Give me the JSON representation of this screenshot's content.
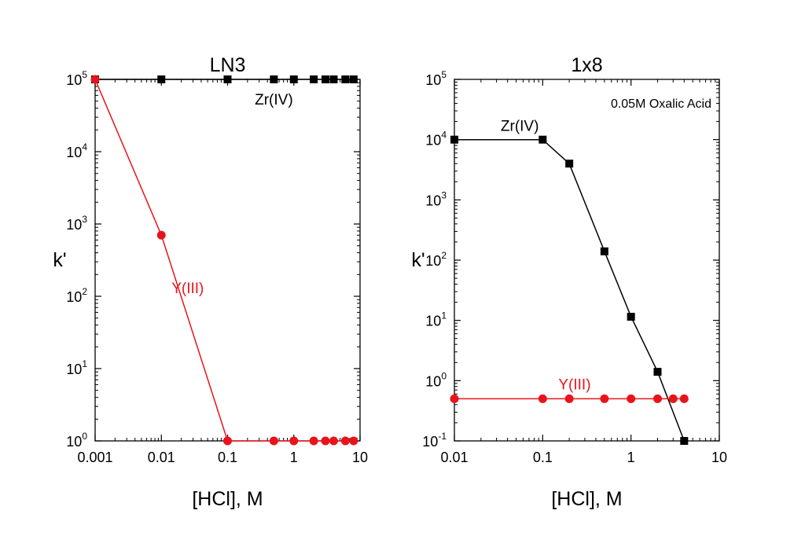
{
  "chart_data": [
    {
      "type": "line",
      "title": "LN3",
      "xlabel": "[HCl], M",
      "ylabel": "k'",
      "xscale": "log",
      "yscale": "log",
      "xlim": [
        0.001,
        10
      ],
      "ylim": [
        1,
        100000
      ],
      "xticks": [
        {
          "value": 0.001,
          "label": "0.001"
        },
        {
          "value": 0.01,
          "label": "0.01"
        },
        {
          "value": 0.1,
          "label": "0.1"
        },
        {
          "value": 1,
          "label": "1"
        },
        {
          "value": 10,
          "label": "10"
        }
      ],
      "yticks": [
        {
          "value": 1,
          "base": "10",
          "exp": "0"
        },
        {
          "value": 10,
          "base": "10",
          "exp": "1"
        },
        {
          "value": 100,
          "base": "10",
          "exp": "2"
        },
        {
          "value": 1000,
          "base": "10",
          "exp": "3"
        },
        {
          "value": 10000,
          "base": "10",
          "exp": "4"
        },
        {
          "value": 100000,
          "base": "10",
          "exp": "5"
        }
      ],
      "grid": false,
      "annotations": [],
      "series": [
        {
          "name": "Zr(IV)",
          "color": "#000000",
          "marker": "square",
          "label_anchor": {
            "x": 0.5,
            "y": 45000
          },
          "x": [
            0.001,
            0.01,
            0.1,
            0.5,
            1,
            2,
            3,
            4,
            6,
            8
          ],
          "y": [
            100000,
            100000,
            100000,
            100000,
            100000,
            100000,
            100000,
            100000,
            100000,
            100000
          ]
        },
        {
          "name": "Y(III)",
          "color": "#e8141b",
          "marker": "circle",
          "label_anchor": {
            "x": 0.025,
            "y": 110
          },
          "x": [
            0.001,
            0.01,
            0.1,
            0.5,
            1,
            2,
            3,
            4,
            6,
            8
          ],
          "y": [
            100000,
            700,
            1,
            1,
            1,
            1,
            1,
            1,
            1,
            1
          ]
        }
      ]
    },
    {
      "type": "line",
      "title": "1x8",
      "xlabel": "[HCl], M",
      "ylabel": "k'",
      "xscale": "log",
      "yscale": "log",
      "xlim": [
        0.01,
        10
      ],
      "ylim": [
        0.1,
        100000
      ],
      "xticks": [
        {
          "value": 0.01,
          "label": "0.01"
        },
        {
          "value": 0.1,
          "label": "0.1"
        },
        {
          "value": 1,
          "label": "1"
        },
        {
          "value": 10,
          "label": "10"
        }
      ],
      "yticks": [
        {
          "value": 0.1,
          "base": "10",
          "exp": "-1"
        },
        {
          "value": 1,
          "base": "10",
          "exp": "0"
        },
        {
          "value": 10,
          "base": "10",
          "exp": "1"
        },
        {
          "value": 100,
          "base": "10",
          "exp": "2"
        },
        {
          "value": 1000,
          "base": "10",
          "exp": "3"
        },
        {
          "value": 10000,
          "base": "10",
          "exp": "4"
        },
        {
          "value": 100000,
          "base": "10",
          "exp": "5"
        }
      ],
      "grid": false,
      "annotations": [
        {
          "text": "0.05M Oxalic Acid",
          "placement": "top-right"
        }
      ],
      "series": [
        {
          "name": "Zr(IV)",
          "color": "#000000",
          "marker": "square",
          "label_anchor": {
            "x": 0.055,
            "y": 14000
          },
          "x": [
            0.01,
            0.1,
            0.2,
            0.5,
            1,
            2,
            4
          ],
          "y": [
            10000,
            10000,
            4000,
            140,
            11.5,
            1.4,
            0.1
          ]
        },
        {
          "name": "Y(III)",
          "color": "#e8141b",
          "marker": "circle",
          "label_anchor": {
            "x": 0.23,
            "y": 0.72
          },
          "x": [
            0.01,
            0.1,
            0.2,
            0.5,
            1,
            2,
            3,
            4
          ],
          "y": [
            0.5,
            0.5,
            0.5,
            0.5,
            0.5,
            0.5,
            0.5,
            0.5
          ]
        }
      ]
    }
  ]
}
